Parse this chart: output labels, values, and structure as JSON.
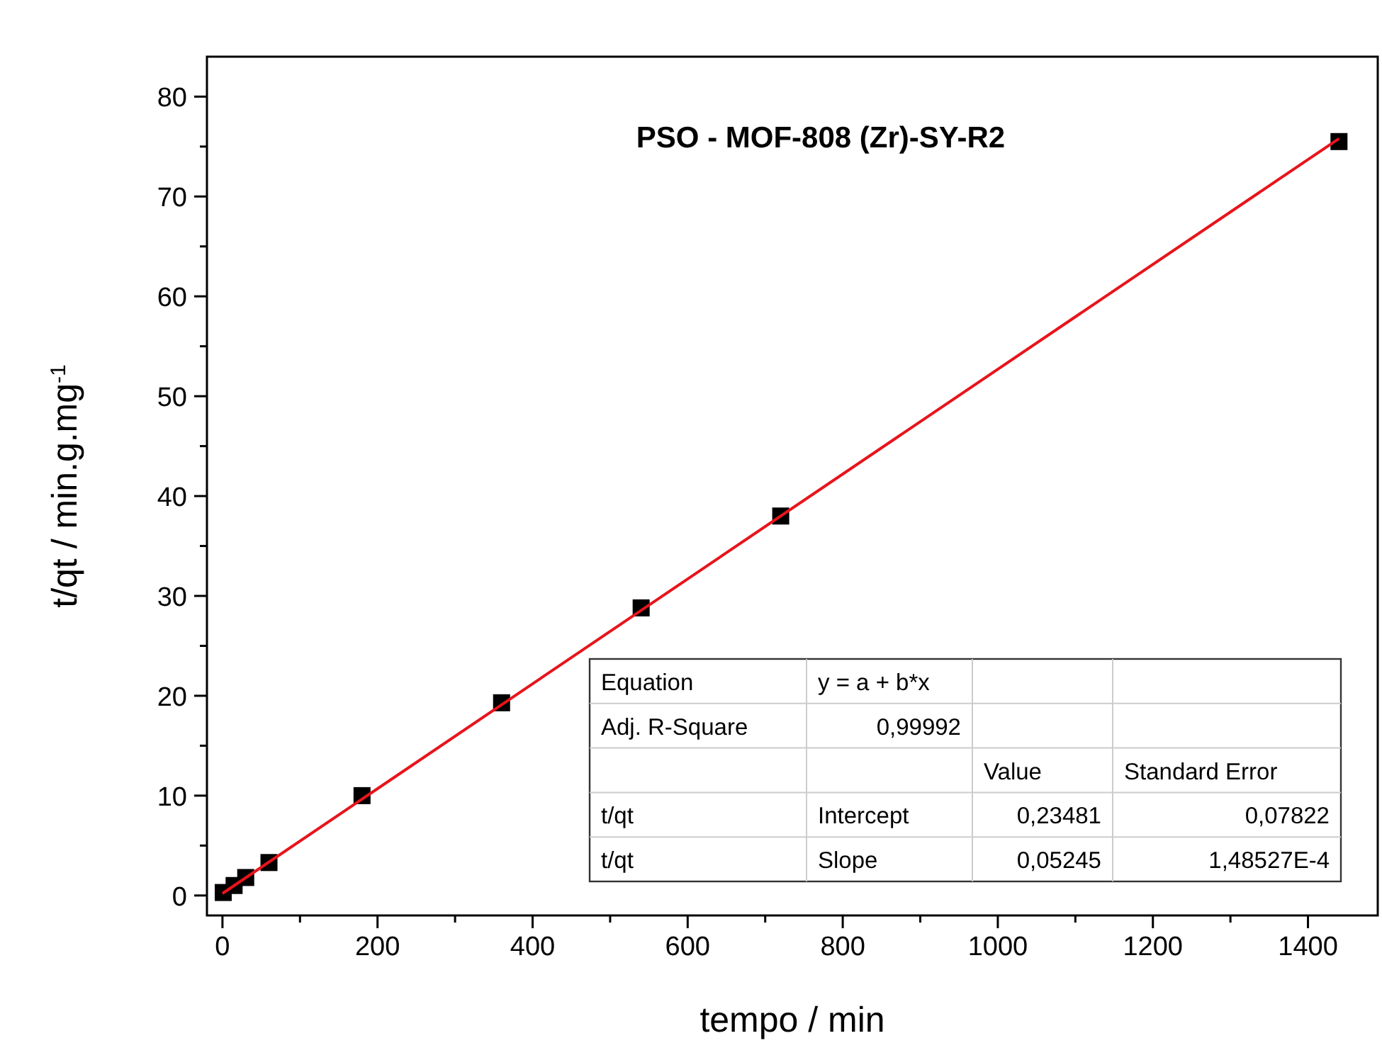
{
  "chart_data": {
    "type": "scatter",
    "title": "PSO - MOF-808 (Zr)-SY-R2",
    "xlabel": "tempo / min",
    "ylabel": "t/qt / min.g.mg$^{-1}$",
    "xlim": [
      -20,
      1490
    ],
    "ylim": [
      -2,
      84
    ],
    "xticks": [
      0,
      {
        "value": 100,
        "label": null
      },
      200,
      {
        "value": 300,
        "label": null
      },
      400,
      {
        "value": 500,
        "label": null
      },
      600,
      {
        "value": 700,
        "label": null
      },
      800,
      {
        "value": 900,
        "label": null
      },
      1000,
      {
        "value": 1100,
        "label": null
      },
      1200,
      {
        "value": 1300,
        "label": null
      },
      1400
    ],
    "yticks": [
      0,
      {
        "value": 5,
        "label": null
      },
      10,
      {
        "value": 15,
        "label": null
      },
      20,
      {
        "value": 25,
        "label": null
      },
      30,
      {
        "value": 35,
        "label": null
      },
      40,
      {
        "value": 45,
        "label": null
      },
      50,
      {
        "value": 55,
        "label": null
      },
      60,
      {
        "value": 65,
        "label": null
      },
      70,
      {
        "value": 75,
        "label": null
      },
      80
    ],
    "grid": false,
    "series": [
      {
        "type": "scatter",
        "marker": "square",
        "color": "#000000",
        "x": [
          1,
          15,
          30,
          60,
          180,
          360,
          540,
          720,
          1440
        ],
        "values": [
          0.3,
          1.0,
          1.8,
          3.3,
          10,
          19.3,
          28.8,
          38,
          75.5
        ]
      },
      {
        "type": "line",
        "marker": "none",
        "line_style": "solid",
        "color": "#e8141b",
        "x": [
          0,
          1440
        ],
        "values": [
          0.2,
          75.8
        ]
      }
    ],
    "annotations": [
      "Equation",
      "y = a + b*x",
      "Adj. R-Square",
      "0,99992",
      "Value",
      "Standard Error",
      "t/qt",
      "Intercept",
      "0,23481",
      "0,07822",
      "t/qt",
      "Slope",
      "0,05245",
      "1,48527E-4"
    ]
  }
}
